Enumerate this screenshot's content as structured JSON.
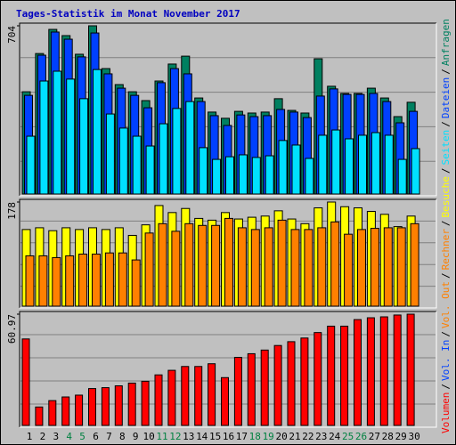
{
  "title": "Tages-Statistik im Monat November 2017",
  "separator": "/",
  "weekend_color": "#008040",
  "weekend_days": [
    "4",
    "5",
    "11",
    "12",
    "18",
    "19",
    "25",
    "26"
  ],
  "chart_data": [
    {
      "type": "bar",
      "ylim": [
        0,
        704
      ],
      "yticks": [
        704
      ],
      "series": [
        {
          "name": "Anfragen",
          "color": "#008060",
          "values": [
            428,
            588,
            689,
            663,
            585,
            704,
            525,
            458,
            428,
            391,
            473,
            544,
            577,
            402,
            343,
            317,
            346,
            339,
            343,
            399,
            350,
            339,
            566,
            451,
            421,
            421,
            443,
            402,
            324,
            384
          ]
        },
        {
          "name": "Dateien",
          "color": "#0040ff",
          "values": [
            413,
            581,
            678,
            648,
            574,
            674,
            503,
            443,
            413,
            361,
            466,
            525,
            503,
            387,
            328,
            287,
            331,
            324,
            328,
            354,
            343,
            320,
            410,
            440,
            417,
            417,
            421,
            387,
            298,
            346
          ]
        },
        {
          "name": "Seiten",
          "color": "#00e0ff",
          "values": [
            242,
            473,
            514,
            481,
            399,
            521,
            335,
            276,
            242,
            201,
            294,
            358,
            387,
            194,
            145,
            156,
            164,
            153,
            160,
            224,
            205,
            149,
            246,
            268,
            231,
            246,
            257,
            246,
            145,
            190
          ]
        }
      ]
    },
    {
      "type": "bar",
      "ylim": [
        0,
        178
      ],
      "yticks": [
        178
      ],
      "series": [
        {
          "name": "Besuche",
          "color": "#ffff00",
          "values": [
            131,
            134,
            129,
            134,
            131,
            134,
            131,
            134,
            121,
            139,
            172,
            160,
            167,
            150,
            147,
            160,
            149,
            152,
            154,
            163,
            149,
            141,
            168,
            178,
            170,
            168,
            162,
            157,
            136,
            154
          ]
        },
        {
          "name": "Rechner",
          "color": "#ff8000",
          "values": [
            86,
            86,
            83,
            86,
            89,
            89,
            91,
            91,
            79,
            125,
            141,
            128,
            141,
            138,
            138,
            150,
            134,
            131,
            134,
            147,
            131,
            131,
            134,
            144,
            123,
            131,
            133,
            134,
            134,
            141
          ]
        }
      ]
    },
    {
      "type": "bar",
      "ylim": [
        0,
        60.97
      ],
      "yticks": [
        60.97
      ],
      "categories": [
        "1",
        "2",
        "3",
        "4",
        "5",
        "6",
        "7",
        "8",
        "9",
        "10",
        "11",
        "12",
        "13",
        "14",
        "15",
        "16",
        "17",
        "18",
        "19",
        "20",
        "21",
        "22",
        "23",
        "24",
        "25",
        "26",
        "27",
        "28",
        "29",
        "30"
      ],
      "series": [
        {
          "name": "Volumen",
          "color": "#ff0000",
          "values": [
            47.4,
            10.1,
            13.6,
            15.6,
            16.6,
            20.2,
            20.7,
            21.7,
            23.2,
            24.2,
            27.7,
            30.2,
            32.3,
            32.3,
            33.8,
            26.2,
            37.3,
            39.3,
            41.3,
            43.8,
            45.9,
            47.9,
            50.9,
            54.4,
            54.4,
            58.0,
            59.0,
            59.5,
            60.5,
            60.97
          ]
        }
      ],
      "legend_extra": [
        {
          "name": "Vol. In",
          "color": "#0040ff"
        },
        {
          "name": "Vol. Out",
          "color": "#ff8000"
        }
      ]
    }
  ]
}
